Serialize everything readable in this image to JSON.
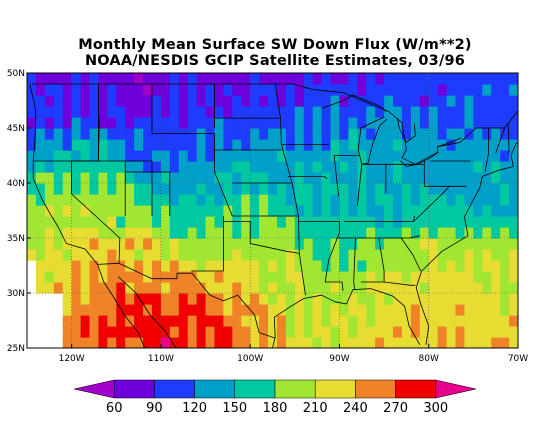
{
  "title": {
    "line1": "Monthly Mean Surface SW Down Flux (W/m**2)",
    "line2": "NOAA/NESDIS GCIP Satellite Estimates, 03/96"
  },
  "map": {
    "lon_range": [
      -125,
      -70
    ],
    "lat_range": [
      25,
      50
    ],
    "lat_labels": [
      "25N",
      "30N",
      "35N",
      "40N",
      "45N",
      "50N"
    ],
    "lat_values": [
      25,
      30,
      35,
      40,
      45,
      50
    ],
    "lon_labels": [
      "120W",
      "110W",
      "100W",
      "90W",
      "80W",
      "70W"
    ],
    "lon_values": [
      -120,
      -110,
      -100,
      -90,
      -80,
      -70
    ]
  },
  "colorbar": {
    "levels": [
      "60",
      "90",
      "120",
      "150",
      "180",
      "210",
      "240",
      "270",
      "300"
    ],
    "colors": [
      "#a000c8",
      "#6e00dc",
      "#1e3cff",
      "#00a0c8",
      "#00c8a0",
      "#a0e632",
      "#e6dc32",
      "#f08228",
      "#f00000",
      "#e6008c"
    ],
    "units": "W/m**2"
  },
  "field_samples": [
    {
      "lat": 49,
      "lon": -122,
      "v": 95
    },
    {
      "lat": 49,
      "lon": -112,
      "v": 80
    },
    {
      "lat": 49,
      "lon": -103,
      "v": 85
    },
    {
      "lat": 49,
      "lon": -95,
      "v": 95
    },
    {
      "lat": 49,
      "lon": -88,
      "v": 100
    },
    {
      "lat": 49,
      "lon": -80,
      "v": 110
    },
    {
      "lat": 49,
      "lon": -72,
      "v": 115
    },
    {
      "lat": 46,
      "lon": -123,
      "v": 105
    },
    {
      "lat": 46,
      "lon": -116,
      "v": 95
    },
    {
      "lat": 46,
      "lon": -108,
      "v": 105
    },
    {
      "lat": 46,
      "lon": -100,
      "v": 115
    },
    {
      "lat": 46,
      "lon": -92,
      "v": 125
    },
    {
      "lat": 46,
      "lon": -85,
      "v": 135
    },
    {
      "lat": 46,
      "lon": -76,
      "v": 125
    },
    {
      "lat": 46,
      "lon": -71,
      "v": 115
    },
    {
      "lat": 43,
      "lon": -123,
      "v": 145
    },
    {
      "lat": 43,
      "lon": -117,
      "v": 155
    },
    {
      "lat": 43,
      "lon": -111,
      "v": 120
    },
    {
      "lat": 43,
      "lon": -104,
      "v": 130
    },
    {
      "lat": 43,
      "lon": -97,
      "v": 145
    },
    {
      "lat": 43,
      "lon": -89,
      "v": 150
    },
    {
      "lat": 43,
      "lon": -82,
      "v": 145
    },
    {
      "lat": 43,
      "lon": -74,
      "v": 140
    },
    {
      "lat": 40,
      "lon": -122,
      "v": 185
    },
    {
      "lat": 40,
      "lon": -116,
      "v": 190
    },
    {
      "lat": 40,
      "lon": -108,
      "v": 150
    },
    {
      "lat": 40,
      "lon": -101,
      "v": 165
    },
    {
      "lat": 40,
      "lon": -93,
      "v": 160
    },
    {
      "lat": 40,
      "lon": -85,
      "v": 150
    },
    {
      "lat": 40,
      "lon": -77,
      "v": 145
    },
    {
      "lat": 40,
      "lon": -72,
      "v": 150
    },
    {
      "lat": 37,
      "lon": -121,
      "v": 215
    },
    {
      "lat": 37,
      "lon": -115,
      "v": 205
    },
    {
      "lat": 37,
      "lon": -108,
      "v": 175
    },
    {
      "lat": 37,
      "lon": -100,
      "v": 190
    },
    {
      "lat": 37,
      "lon": -92,
      "v": 170
    },
    {
      "lat": 37,
      "lon": -84,
      "v": 165
    },
    {
      "lat": 37,
      "lon": -77,
      "v": 175
    },
    {
      "lat": 34,
      "lon": -118,
      "v": 235
    },
    {
      "lat": 34,
      "lon": -112,
      "v": 235
    },
    {
      "lat": 34,
      "lon": -105,
      "v": 200
    },
    {
      "lat": 34,
      "lon": -98,
      "v": 205
    },
    {
      "lat": 34,
      "lon": -91,
      "v": 185
    },
    {
      "lat": 34,
      "lon": -84,
      "v": 200
    },
    {
      "lat": 34,
      "lon": -78,
      "v": 215
    },
    {
      "lat": 31,
      "lon": -115,
      "v": 265
    },
    {
      "lat": 31,
      "lon": -109,
      "v": 260
    },
    {
      "lat": 31,
      "lon": -103,
      "v": 245
    },
    {
      "lat": 31,
      "lon": -97,
      "v": 215
    },
    {
      "lat": 31,
      "lon": -90,
      "v": 205
    },
    {
      "lat": 31,
      "lon": -84,
      "v": 225
    },
    {
      "lat": 31,
      "lon": -77,
      "v": 230
    },
    {
      "lat": 31,
      "lon": -71,
      "v": 215
    },
    {
      "lat": 28,
      "lon": -112,
      "v": 290
    },
    {
      "lat": 28,
      "lon": -106,
      "v": 285
    },
    {
      "lat": 28,
      "lon": -100,
      "v": 260
    },
    {
      "lat": 28,
      "lon": -94,
      "v": 215
    },
    {
      "lat": 28,
      "lon": -88,
      "v": 220
    },
    {
      "lat": 28,
      "lon": -82,
      "v": 240
    },
    {
      "lat": 28,
      "lon": -75,
      "v": 235
    },
    {
      "lat": 26,
      "lon": -110,
      "v": 295
    },
    {
      "lat": 26,
      "lon": -104,
      "v": 285
    },
    {
      "lat": 26,
      "lon": -98,
      "v": 250
    },
    {
      "lat": 26,
      "lon": -92,
      "v": 225
    },
    {
      "lat": 26,
      "lon": -85,
      "v": 240
    },
    {
      "lat": 26,
      "lon": -78,
      "v": 250
    },
    {
      "lat": 26,
      "lon": -72,
      "v": 240
    }
  ]
}
